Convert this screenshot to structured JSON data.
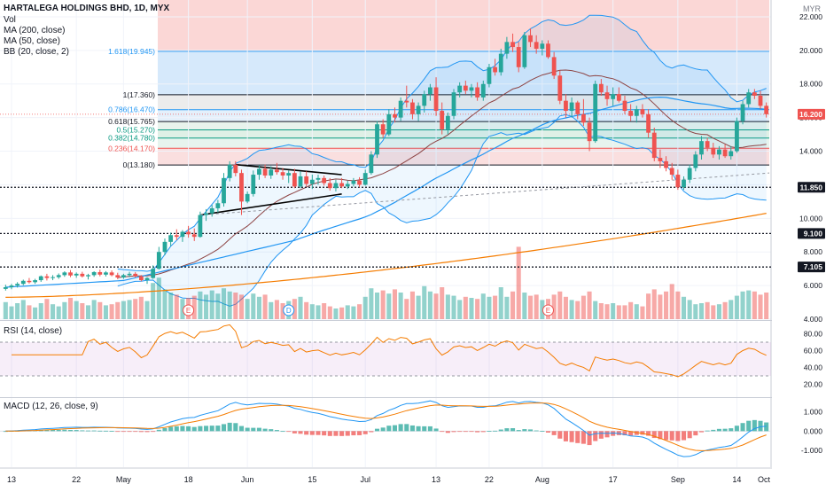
{
  "header": {
    "title": "HARTALEGA HOLDINGS BHD, 1D, MYX",
    "vol_label": "Vol",
    "ma200_label": "MA (200, close)",
    "ma50_label": "MA (50, close)",
    "bb_label": "BB (20, close, 2)",
    "currency": "MYR"
  },
  "price_axis": {
    "ticks": [
      "22.000",
      "20.000",
      "18.000",
      "16.000",
      "14.000",
      "12.000",
      "10.000",
      "8.000",
      "6.000",
      "4.000"
    ],
    "tick_values": [
      22,
      20,
      18,
      16,
      14,
      12,
      10,
      8,
      6,
      4
    ]
  },
  "price_badges": [
    {
      "label": "16.200",
      "value": 16.2,
      "color": "#ef5350"
    },
    {
      "label": "11.850",
      "value": 11.85,
      "color": "#131722"
    },
    {
      "label": "9.100",
      "value": 9.1,
      "color": "#131722"
    },
    {
      "label": "7.105",
      "value": 7.105,
      "color": "#131722"
    }
  ],
  "fib_levels": [
    {
      "label": "1.618(19.945)",
      "value": 19.945,
      "color": "#2196f3"
    },
    {
      "label": "1(17.360)",
      "value": 17.36,
      "color": "#131722"
    },
    {
      "label": "0.786(16.470)",
      "value": 16.47,
      "color": "#2196f3"
    },
    {
      "label": "0.618(15.765)",
      "value": 15.765,
      "color": "#131722"
    },
    {
      "label": "0.5(15.270)",
      "value": 15.27,
      "color": "#089981"
    },
    {
      "label": "0.382(14.780)",
      "value": 14.78,
      "color": "#089981"
    },
    {
      "label": "0.236(14.170)",
      "value": 14.17,
      "color": "#ef5350"
    },
    {
      "label": "0(13.180)",
      "value": 13.18,
      "color": "#131722"
    }
  ],
  "rsi": {
    "label": "RSI (14, close)",
    "ticks": [
      "80.00",
      "60.00",
      "40.00",
      "20.00"
    ],
    "tick_values": [
      80,
      60,
      40,
      20
    ]
  },
  "macd": {
    "label": "MACD (12, 26, close, 9)",
    "ticks": [
      "1.000",
      "0.000",
      "-1.000"
    ],
    "tick_values": [
      1,
      0,
      -1
    ]
  },
  "x_axis": {
    "labels": [
      "13",
      "22",
      "May",
      "18",
      "Jun",
      "15",
      "Jul",
      "13",
      "22",
      "Aug",
      "17",
      "Sep",
      "14",
      "Oct"
    ],
    "label_bars": [
      1,
      12,
      20,
      31,
      41,
      52,
      61,
      73,
      82,
      91,
      103,
      114,
      124,
      137
    ]
  },
  "event_markers": [
    {
      "label": "E",
      "bar": 31
    },
    {
      "label": "D",
      "bar": 48
    },
    {
      "label": "E",
      "bar": 92
    }
  ],
  "colors": {
    "up": "#26a69a",
    "down": "#ef5350",
    "ma200": "#f57c00",
    "ma50": "#2196f3",
    "bb_basis": "#8d4343",
    "bb_band": "#2196f3",
    "rsi": "#f57c00",
    "macd": "#2196f3",
    "signal": "#f57c00"
  },
  "chart_data": {
    "type": "candlestick",
    "y_range": [
      4,
      23
    ],
    "ohlc": [
      [
        5.8,
        6.05,
        5.7,
        5.9
      ],
      [
        5.9,
        6.1,
        5.78,
        6.0
      ],
      [
        6.0,
        6.2,
        5.88,
        6.1
      ],
      [
        6.1,
        6.35,
        6.02,
        6.28
      ],
      [
        6.28,
        6.45,
        6.12,
        6.2
      ],
      [
        6.2,
        6.4,
        6.1,
        6.32
      ],
      [
        6.32,
        6.6,
        6.22,
        6.55
      ],
      [
        6.55,
        6.7,
        6.3,
        6.45
      ],
      [
        6.45,
        6.62,
        6.32,
        6.5
      ],
      [
        6.5,
        6.72,
        6.4,
        6.62
      ],
      [
        6.62,
        6.85,
        6.52,
        6.78
      ],
      [
        6.78,
        6.92,
        6.5,
        6.6
      ],
      [
        6.6,
        6.78,
        6.46,
        6.7
      ],
      [
        6.7,
        6.82,
        6.48,
        6.55
      ],
      [
        6.55,
        6.7,
        6.36,
        6.62
      ],
      [
        6.62,
        6.85,
        6.52,
        6.8
      ],
      [
        6.8,
        6.95,
        6.55,
        6.65
      ],
      [
        6.65,
        6.86,
        6.54,
        6.78
      ],
      [
        6.78,
        6.9,
        6.55,
        6.62
      ],
      [
        6.62,
        6.76,
        6.38,
        6.48
      ],
      [
        6.48,
        6.7,
        6.4,
        6.62
      ],
      [
        6.62,
        6.82,
        6.5,
        6.7
      ],
      [
        6.7,
        6.8,
        6.48,
        6.55
      ],
      [
        6.55,
        6.62,
        6.25,
        6.32
      ],
      [
        6.32,
        6.5,
        6.1,
        6.45
      ],
      [
        6.45,
        7.2,
        6.4,
        7.0
      ],
      [
        7.0,
        8.3,
        6.95,
        8.0
      ],
      [
        8.0,
        8.8,
        7.8,
        8.6
      ],
      [
        8.6,
        9.15,
        8.35,
        9.0
      ],
      [
        9.0,
        9.35,
        8.7,
        8.9
      ],
      [
        8.9,
        9.3,
        8.6,
        9.2
      ],
      [
        9.2,
        9.55,
        8.85,
        9.05
      ],
      [
        9.05,
        9.4,
        8.65,
        8.9
      ],
      [
        8.9,
        10.4,
        8.85,
        10.2
      ],
      [
        10.2,
        10.55,
        9.85,
        10.3
      ],
      [
        10.3,
        10.8,
        10.1,
        10.6
      ],
      [
        10.6,
        11.1,
        10.35,
        10.9
      ],
      [
        10.9,
        12.7,
        10.7,
        12.4
      ],
      [
        12.4,
        13.4,
        12.2,
        13.2
      ],
      [
        13.2,
        13.4,
        12.5,
        12.7
      ],
      [
        12.7,
        12.9,
        10.2,
        11.0
      ],
      [
        11.0,
        11.6,
        10.9,
        11.45
      ],
      [
        11.45,
        12.85,
        11.3,
        12.6
      ],
      [
        12.6,
        13.15,
        12.3,
        12.95
      ],
      [
        12.95,
        13.2,
        12.4,
        12.55
      ],
      [
        12.55,
        13.1,
        12.35,
        12.9
      ],
      [
        12.9,
        13.3,
        12.6,
        12.75
      ],
      [
        12.75,
        13.0,
        12.3,
        12.55
      ],
      [
        12.55,
        12.85,
        12.1,
        12.7
      ],
      [
        12.7,
        12.95,
        11.8,
        11.9
      ],
      [
        11.9,
        12.8,
        11.8,
        12.5
      ],
      [
        12.5,
        12.8,
        11.9,
        12.05
      ],
      [
        12.05,
        12.6,
        11.75,
        12.3
      ],
      [
        12.3,
        12.6,
        12.0,
        12.4
      ],
      [
        12.4,
        12.55,
        11.95,
        12.1
      ],
      [
        12.1,
        12.4,
        11.65,
        11.8
      ],
      [
        11.8,
        12.3,
        11.6,
        12.1
      ],
      [
        12.1,
        12.4,
        11.8,
        11.9
      ],
      [
        11.9,
        12.25,
        11.75,
        12.05
      ],
      [
        12.05,
        12.4,
        11.9,
        12.25
      ],
      [
        12.25,
        12.45,
        11.85,
        12.0
      ],
      [
        12.0,
        12.9,
        11.95,
        12.7
      ],
      [
        12.7,
        14.0,
        12.6,
        13.8
      ],
      [
        13.8,
        15.8,
        13.6,
        15.6
      ],
      [
        15.6,
        15.9,
        14.8,
        15.0
      ],
      [
        15.0,
        16.5,
        14.9,
        16.2
      ],
      [
        16.2,
        16.6,
        15.7,
        16.0
      ],
      [
        16.0,
        17.2,
        15.8,
        17.0
      ],
      [
        17.0,
        17.9,
        16.6,
        16.9
      ],
      [
        16.9,
        17.1,
        15.9,
        16.2
      ],
      [
        16.2,
        16.9,
        15.8,
        16.7
      ],
      [
        16.7,
        17.6,
        16.3,
        17.4
      ],
      [
        17.4,
        18.0,
        17.0,
        17.8
      ],
      [
        17.8,
        18.4,
        16.1,
        16.4
      ],
      [
        16.4,
        16.9,
        15.0,
        15.3
      ],
      [
        15.3,
        16.3,
        15.0,
        16.1
      ],
      [
        16.1,
        17.7,
        15.9,
        17.5
      ],
      [
        17.5,
        18.1,
        17.2,
        17.9
      ],
      [
        17.9,
        18.2,
        17.4,
        17.6
      ],
      [
        17.6,
        18.0,
        17.2,
        17.8
      ],
      [
        17.8,
        18.1,
        17.0,
        17.2
      ],
      [
        17.2,
        18.2,
        17.0,
        18.0
      ],
      [
        18.0,
        19.2,
        17.8,
        19.0
      ],
      [
        19.0,
        19.5,
        18.5,
        18.7
      ],
      [
        18.7,
        20.1,
        18.5,
        19.8
      ],
      [
        19.8,
        20.8,
        19.5,
        20.5
      ],
      [
        20.5,
        21.0,
        19.9,
        20.2
      ],
      [
        20.2,
        20.5,
        18.7,
        19.0
      ],
      [
        19.0,
        21.1,
        18.9,
        20.9
      ],
      [
        20.9,
        21.3,
        20.2,
        20.5
      ],
      [
        20.5,
        20.9,
        19.8,
        20.1
      ],
      [
        20.1,
        20.6,
        19.7,
        20.4
      ],
      [
        20.4,
        20.6,
        19.5,
        19.6
      ],
      [
        19.6,
        19.9,
        18.3,
        18.5
      ],
      [
        18.5,
        18.8,
        16.8,
        17.0
      ],
      [
        17.0,
        17.4,
        16.0,
        16.4
      ],
      [
        16.4,
        17.2,
        16.0,
        16.9
      ],
      [
        16.9,
        17.0,
        15.9,
        16.2
      ],
      [
        16.2,
        17.1,
        15.5,
        15.7
      ],
      [
        15.7,
        16.0,
        14.0,
        14.6
      ],
      [
        14.6,
        18.2,
        14.5,
        18.0
      ],
      [
        18.0,
        18.3,
        17.3,
        17.5
      ],
      [
        17.5,
        17.9,
        16.7,
        17.1
      ],
      [
        17.1,
        17.8,
        16.7,
        17.4
      ],
      [
        17.4,
        17.8,
        16.9,
        17.0
      ],
      [
        17.0,
        17.3,
        16.2,
        16.4
      ],
      [
        16.4,
        16.8,
        15.8,
        16.1
      ],
      [
        16.1,
        16.7,
        15.7,
        16.5
      ],
      [
        16.5,
        16.8,
        16.0,
        16.2
      ],
      [
        16.2,
        16.5,
        14.8,
        15.1
      ],
      [
        15.1,
        15.4,
        13.4,
        13.6
      ],
      [
        13.6,
        14.1,
        13.0,
        13.4
      ],
      [
        13.4,
        13.7,
        12.8,
        13.0
      ],
      [
        13.0,
        13.3,
        12.3,
        12.6
      ],
      [
        12.6,
        12.9,
        11.7,
        11.85
      ],
      [
        11.85,
        12.5,
        11.7,
        12.3
      ],
      [
        12.3,
        13.2,
        12.1,
        13.0
      ],
      [
        13.0,
        14.0,
        12.8,
        13.8
      ],
      [
        13.8,
        14.9,
        13.5,
        14.6
      ],
      [
        14.6,
        14.8,
        14.0,
        14.2
      ],
      [
        14.2,
        14.5,
        13.6,
        13.8
      ],
      [
        13.8,
        14.3,
        13.5,
        14.1
      ],
      [
        14.1,
        14.4,
        13.6,
        13.7
      ],
      [
        13.7,
        14.3,
        13.5,
        14.0
      ],
      [
        14.0,
        16.0,
        13.9,
        15.8
      ],
      [
        15.8,
        17.0,
        15.6,
        16.8
      ],
      [
        16.8,
        17.7,
        16.6,
        17.5
      ],
      [
        17.5,
        17.7,
        17.1,
        17.3
      ],
      [
        17.3,
        17.6,
        16.5,
        16.7
      ],
      [
        16.7,
        16.9,
        16.0,
        16.2
      ]
    ],
    "volume": [
      1.6,
      1.2,
      1.5,
      1.8,
      1.3,
      1.1,
      1.5,
      1.9,
      1.4,
      1.2,
      1.6,
      2.0,
      1.7,
      1.5,
      1.3,
      1.8,
      1.6,
      1.3,
      1.4,
      1.6,
      1.7,
      1.8,
      1.9,
      2.1,
      1.7,
      3.4,
      3.9,
      2.8,
      2.5,
      2.3,
      1.9,
      2.0,
      2.2,
      2.6,
      2.3,
      2.7,
      2.4,
      2.9,
      2.6,
      2.5,
      2.3,
      1.9,
      2.4,
      2.1,
      2.3,
      1.6,
      1.8,
      1.5,
      1.7,
      1.9,
      2.1,
      1.6,
      1.4,
      1.3,
      1.5,
      1.2,
      1.0,
      1.1,
      1.3,
      1.2,
      1.4,
      2.1,
      2.9,
      2.5,
      2.7,
      2.4,
      2.8,
      2.5,
      1.9,
      2.6,
      2.2,
      3.1,
      2.6,
      2.4,
      3.0,
      2.3,
      2.2,
      1.8,
      2.1,
      2.0,
      1.9,
      2.4,
      2.1,
      2.2,
      3.0,
      2.1,
      2.6,
      6.8,
      2.5,
      2.2,
      2.3,
      1.8,
      1.9,
      2.3,
      2.6,
      2.1,
      1.8,
      1.7,
      2.2,
      2.6,
      1.7,
      1.5,
      1.4,
      1.5,
      1.3,
      1.3,
      1.6,
      1.4,
      1.2,
      2.4,
      2.8,
      2.3,
      2.6,
      3.3,
      2.6,
      2.1,
      1.8,
      1.4,
      1.5,
      1.6,
      1.3,
      1.4,
      1.6,
      1.8,
      2.2,
      2.6,
      2.7,
      2.6,
      2.3,
      2.5
    ]
  }
}
